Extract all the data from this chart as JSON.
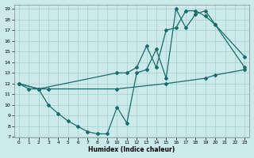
{
  "xlabel": "Humidex (Indice chaleur)",
  "bg_color": "#cceaea",
  "grid_color": "#aad4d4",
  "line_color": "#1a6b6b",
  "xlim": [
    -0.5,
    23.5
  ],
  "ylim": [
    7,
    19.4
  ],
  "yticks": [
    7,
    8,
    9,
    10,
    11,
    12,
    13,
    14,
    15,
    16,
    17,
    18,
    19
  ],
  "xticks": [
    0,
    1,
    2,
    3,
    4,
    5,
    6,
    7,
    8,
    9,
    10,
    11,
    12,
    13,
    14,
    15,
    16,
    17,
    18,
    19,
    20,
    21,
    22,
    23
  ],
  "line1_x": [
    0,
    1,
    2,
    10,
    11,
    12,
    13,
    14,
    15,
    16,
    17,
    18,
    19,
    20,
    23
  ],
  "line1_y": [
    12,
    11.5,
    11.5,
    13,
    13,
    13.5,
    15.5,
    13.5,
    17,
    17.2,
    18.8,
    18.8,
    18.3,
    17.5,
    13.5
  ],
  "line2_x": [
    0,
    2,
    3,
    4,
    5,
    6,
    7,
    8,
    9,
    10,
    11,
    12,
    13,
    14,
    15,
    16,
    17,
    18,
    19,
    20,
    23
  ],
  "line2_y": [
    12,
    11.5,
    10,
    9.2,
    8.5,
    8.0,
    7.5,
    7.3,
    7.3,
    9.8,
    8.3,
    13.0,
    13.3,
    15.2,
    12.5,
    19.0,
    17.2,
    18.5,
    18.8,
    17.5,
    14.5
  ],
  "line3_x": [
    0,
    2,
    3,
    10,
    15,
    19,
    20,
    23
  ],
  "line3_y": [
    12,
    11.5,
    11.5,
    11.5,
    12.0,
    12.5,
    12.8,
    13.3
  ]
}
